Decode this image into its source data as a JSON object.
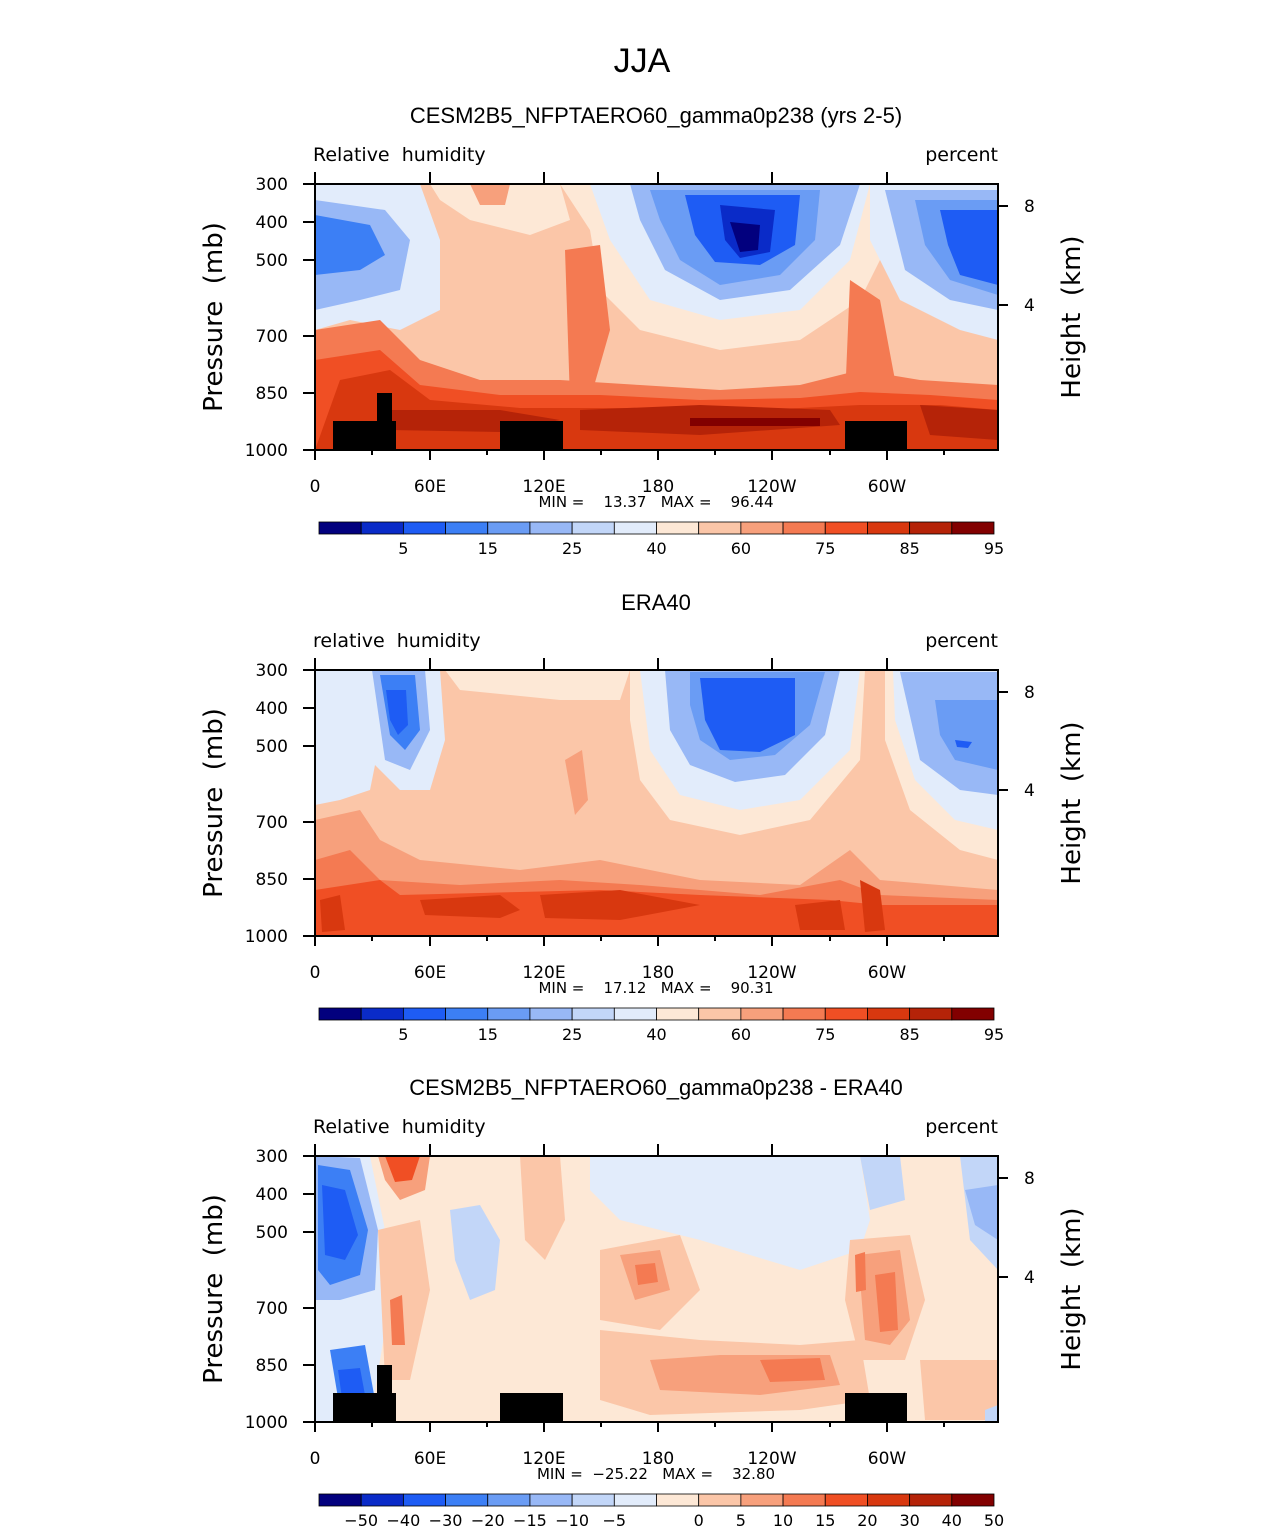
{
  "page_title": "JJA",
  "chart_data": [
    {
      "type": "heatmap",
      "title": "CESM2B5_NFPTAERO60_gamma0p238 (yrs 2-5)",
      "left_label": "Relative  humidity",
      "right_label": "percent",
      "ylabel": "Pressure  (mb)",
      "ylabel2": "Height  (km)",
      "y_ticks": [
        "300",
        "400",
        "500",
        "700",
        "850",
        "1000"
      ],
      "y2_ticks": [
        "8",
        "4"
      ],
      "x_ticks": [
        "0",
        "60E",
        "120E",
        "180",
        "120W",
        "60W"
      ],
      "stats": "MIN =    13.37   MAX =    96.44",
      "min": 13.37,
      "max": 96.44,
      "colorbar_labels": [
        "5",
        "15",
        "25",
        "40",
        "60",
        "75",
        "85",
        "95"
      ],
      "colorbar_colors": [
        "#02007e",
        "#0a2bc8",
        "#1e5cf4",
        "#3c7ff5",
        "#6a9cf4",
        "#98b8f6",
        "#c2d6f8",
        "#e2ecfb",
        "#fde8d6",
        "#fbc6a8",
        "#f7a07c",
        "#f47a52",
        "#f04f24",
        "#d8380f",
        "#b52308",
        "#820000"
      ],
      "topography": true
    },
    {
      "type": "heatmap",
      "title": "ERA40",
      "left_label": "relative  humidity",
      "right_label": "percent",
      "ylabel": "Pressure  (mb)",
      "ylabel2": "Height  (km)",
      "y_ticks": [
        "300",
        "400",
        "500",
        "700",
        "850",
        "1000"
      ],
      "y2_ticks": [
        "8",
        "4"
      ],
      "x_ticks": [
        "0",
        "60E",
        "120E",
        "180",
        "120W",
        "60W"
      ],
      "stats": "MIN =    17.12   MAX =    90.31",
      "min": 17.12,
      "max": 90.31,
      "colorbar_labels": [
        "5",
        "15",
        "25",
        "40",
        "60",
        "75",
        "85",
        "95"
      ],
      "colorbar_colors": [
        "#02007e",
        "#0a2bc8",
        "#1e5cf4",
        "#3c7ff5",
        "#6a9cf4",
        "#98b8f6",
        "#c2d6f8",
        "#e2ecfb",
        "#fde8d6",
        "#fbc6a8",
        "#f7a07c",
        "#f47a52",
        "#f04f24",
        "#d8380f",
        "#b52308",
        "#820000"
      ],
      "topography": false
    },
    {
      "type": "heatmap",
      "title": "CESM2B5_NFPTAERO60_gamma0p238 - ERA40",
      "left_label": "Relative  humidity",
      "right_label": "percent",
      "ylabel": "Pressure  (mb)",
      "ylabel2": "Height  (km)",
      "y_ticks": [
        "300",
        "400",
        "500",
        "700",
        "850",
        "1000"
      ],
      "y2_ticks": [
        "8",
        "4"
      ],
      "x_ticks": [
        "0",
        "60E",
        "120E",
        "180",
        "120W",
        "60W"
      ],
      "stats": "MIN =  −25.22   MAX =    32.80",
      "min": -25.22,
      "max": 32.8,
      "colorbar_labels": [
        "−50",
        "−40",
        "−30",
        "−20",
        "−15",
        "−10",
        "−5",
        "0",
        "5",
        "10",
        "15",
        "20",
        "30",
        "40",
        "50"
      ],
      "colorbar_colors": [
        "#02007e",
        "#0a2bc8",
        "#1e5cf4",
        "#3c7ff5",
        "#6a9cf4",
        "#98b8f6",
        "#c2d6f8",
        "#e2ecfb",
        "#fde8d6",
        "#fbc6a8",
        "#f7a07c",
        "#f47a52",
        "#f04f24",
        "#d8380f",
        "#b52308",
        "#820000"
      ],
      "topography": true
    }
  ]
}
